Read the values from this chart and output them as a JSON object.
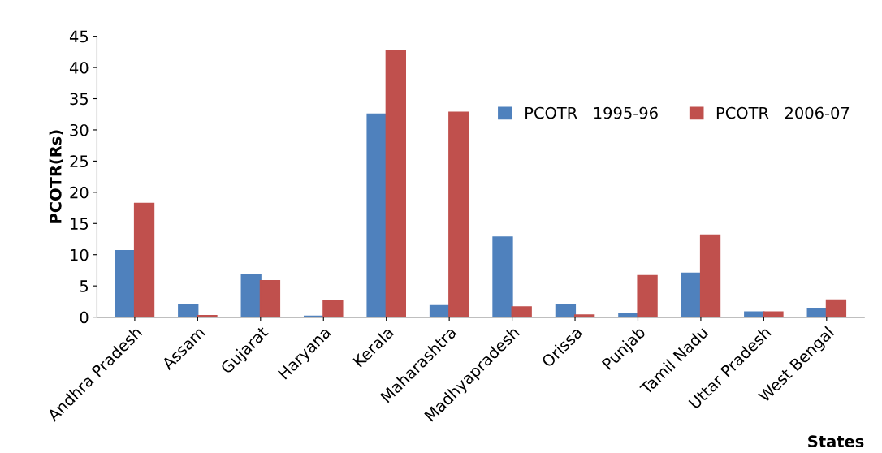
{
  "chart_data": {
    "type": "bar",
    "ylabel": "PCOTR(Rs)",
    "xlabel": "States",
    "categories": [
      "Andhra Pradesh",
      "Assam",
      "Gujarat",
      "Haryana",
      "Kerala",
      "Maharashtra",
      "Madhyapradesh",
      "Orissa",
      "Punjab",
      "Tamil Nadu",
      "Uttar Pradesh",
      "West Bengal"
    ],
    "series": [
      {
        "name": "PCOTR   1995-96",
        "color": "#4f81bd",
        "values": [
          10.6,
          2.0,
          6.8,
          0.1,
          32.5,
          1.8,
          12.8,
          2.0,
          0.5,
          7.0,
          0.8,
          1.3
        ]
      },
      {
        "name": "PCOTR   2006-07",
        "color": "#c0504d",
        "values": [
          18.2,
          0.2,
          5.8,
          2.6,
          42.6,
          32.8,
          1.6,
          0.3,
          6.6,
          13.1,
          0.8,
          2.7
        ]
      }
    ],
    "ylim": [
      0,
      45
    ],
    "yticks": [
      0,
      5,
      10,
      15,
      20,
      25,
      30,
      35,
      40,
      45
    ],
    "grid": false,
    "legend": "top right"
  }
}
